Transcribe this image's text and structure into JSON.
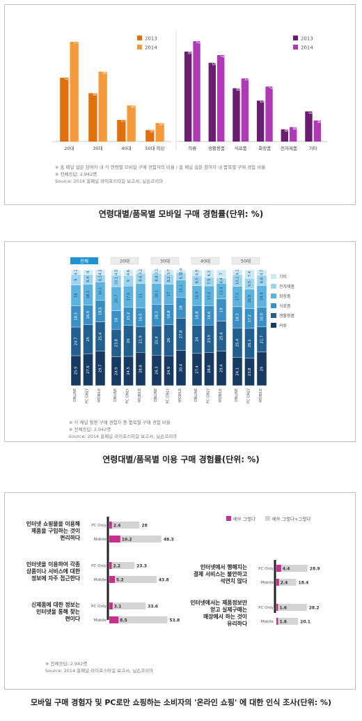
{
  "captions": {
    "fig1": "연령대별/품목별 모바일 구매 경험률(단위: %)",
    "fig2": "연령대별/품목별 이용 구매 경험률(단위: %)",
    "fig3": "모바일 구매 경험자 및 PC로만 쇼핑하는 소비자의 '온라인 쇼핑' 에 대한 인식 조사(단위: %)"
  },
  "fig1_notes": [
    "※ 홈 페널 설문 참여자 내 각 연령별 모바일 구매 경험자의 비율 / 홈 페널 설문 참여자 내 품목별 구매 경험 비율",
    "※ 전체응답: 2,942명",
    "Source: 2014 홈페널 라이프스타일 보고서, 닐슨코리아"
  ],
  "fig2_notes": [
    "※ 각 채널 활용 구매 경험자 중 품목별 구매 경험 비율",
    "※ 전체응답: 2,942명",
    "Source: 2014 홈페널 라이프스타일 보고서, 닐슨코리아"
  ],
  "fig3_notes": [
    "※ 전체응답: 2,942명",
    "Source: 2014 홈페널 라이프스타일 보고서, 닐슨코리아"
  ],
  "chart_data": [
    {
      "type": "bar",
      "categories": [
        "20대",
        "30대",
        "40대",
        "50대 이상"
      ],
      "series": [
        {
          "name": "2013",
          "values": [
            32.7,
            24.8,
            11.1,
            5.9
          ]
        },
        {
          "name": "2014",
          "values": [
            51.1,
            35.8,
            18.5,
            9.5
          ]
        }
      ],
      "colors": [
        "#e26f0d",
        "#f59a3a"
      ],
      "ylim": [
        0,
        55
      ]
    },
    {
      "type": "bar",
      "categories": [
        "의류",
        "생활용품",
        "식료품",
        "화장품",
        "전자제품",
        "기타"
      ],
      "series": [
        {
          "name": "2013",
          "values": [
            48.6,
            42.5,
            28.8,
            22.1,
            6.6,
            16.3
          ]
        },
        {
          "name": "2014",
          "values": [
            54.2,
            46.7,
            34.1,
            29.7,
            7.8,
            11.4
          ]
        }
      ],
      "colors": [
        "#6b1e6f",
        "#b03ab5"
      ],
      "ylim": [
        0,
        58
      ]
    },
    {
      "type": "bar",
      "stacked": true,
      "groups": [
        "전체",
        "20대",
        "30대",
        "40대",
        "50대"
      ],
      "channels": [
        "ONLINE",
        "PC ONLY",
        "MOBILE"
      ],
      "series": [
        {
          "name": "의류",
          "values": [
            [
              25.9,
              27.6,
              29.7
            ],
            [
              24.9,
              24.5,
              28.8
            ],
            [
              26.3,
              24.9,
              30.4
            ],
            [
              27.4,
              28.6,
              29.4
            ],
            [
              24.1,
              23.8,
              29.0
            ]
          ]
        },
        {
          "name": "생활용품",
          "values": [
            [
              24.7,
              25.0,
              25.4
            ],
            [
              23.8,
              26.0,
              21.9
            ],
            [
              25.4,
              26.0,
              27.8
            ],
            [
              24.0,
              23.5,
              25.6
            ],
            [
              25.4,
              26.1,
              21.7
            ]
          ]
        },
        {
          "name": "식료품",
          "values": [
            [
              18.3,
              16.9,
              18.5
            ],
            [
              16.0,
              15.2,
              16.5
            ],
            [
              18.3,
              16.8,
              18.0
            ],
            [
              16.8,
              16.6,
              19.0
            ],
            [
              18.3,
              17.2,
              16.9
            ]
          ]
        },
        {
          "name": "화장품",
          "values": [
            [
              18.0,
              18.1,
              16.1
            ],
            [
              20.7,
              17.6,
              21.0
            ],
            [
              18.1,
              17.0,
              15.1
            ],
            [
              16.9,
              17.2,
              13.4
            ],
            [
              17.5,
              16.9,
              18.9
            ]
          ]
        },
        {
          "name": "전자제품",
          "values": [
            [
              9.0,
              8.4,
              6.1
            ],
            [
              10.1,
              9.0,
              8.6
            ],
            [
              8.8,
              8.2,
              6.3
            ],
            [
              8.5,
              7.5,
              4.4
            ],
            [
              10.1,
              9.5,
              8.8
            ]
          ]
        },
        {
          "name": "기타",
          "values": [
            [
              4.1,
              4.0,
              4.2
            ],
            [
              4.5,
              4.6,
              3.2
            ],
            [
              3.1,
              3.7,
              2.4
            ],
            [
              4.9,
              6.3,
              7.0
            ],
            [
              4.1,
              7.4,
              4.7
            ]
          ]
        }
      ],
      "colors": [
        "#173a63",
        "#235f8e",
        "#3a8fc4",
        "#5db3dd",
        "#9fd4ee",
        "#cfeaf7"
      ]
    },
    {
      "type": "bar",
      "orientation": "horizontal",
      "legend": [
        "매우 그렇다",
        "매우 그렇다+그렇다"
      ],
      "colors": [
        "#c72f8f",
        "#d4d4d4"
      ],
      "items": [
        {
          "statement": "인터넷 쇼핑몰을 이용해 제품을 구입하는 것이 편리하다",
          "rows": [
            {
              "group": "PC Only",
              "strong": 2.4,
              "total": 28.0
            },
            {
              "group": "Mobile",
              "strong": 10.2,
              "total": 48.3
            }
          ]
        },
        {
          "statement": "인터넷을 이용하여 각종 상품이나 서비스에 대한 정보에 자주 접근한다",
          "rows": [
            {
              "group": "PC Only",
              "strong": 2.2,
              "total": 23.3
            },
            {
              "group": "Mobile",
              "strong": 5.2,
              "total": 43.8
            }
          ]
        },
        {
          "statement": "신제품에 대한 정보는 인터넷을 통해 찾는 편이다",
          "rows": [
            {
              "group": "PC Only",
              "strong": 3.1,
              "total": 33.6
            },
            {
              "group": "Mobile",
              "strong": 8.5,
              "total": 53.8
            }
          ]
        },
        {
          "statement": "인터넷에서 행해지는 결제 서비스는 불안하고 석연치 않다",
          "rows": [
            {
              "group": "PC Only",
              "strong": 4.4,
              "total": 28.9
            },
            {
              "group": "Mobile",
              "strong": 2.4,
              "total": 18.4
            }
          ]
        },
        {
          "statement": "인터넷에서는 제품정보만 얻고 실제구매는 매장에서 하는 것이 유리하다",
          "rows": [
            {
              "group": "PC Only",
              "strong": 1.6,
              "total": 28.2
            },
            {
              "group": "Mobile",
              "strong": 1.6,
              "total": 20.1
            }
          ]
        }
      ]
    }
  ]
}
